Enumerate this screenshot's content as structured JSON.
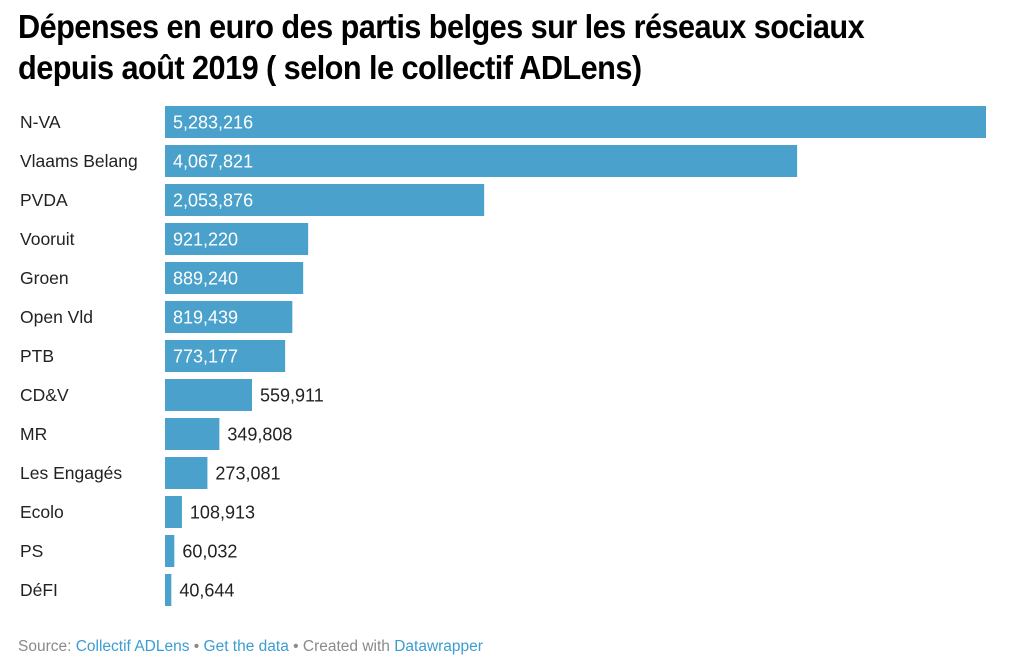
{
  "chart_data": {
    "type": "bar",
    "orientation": "horizontal",
    "title": "Dépenses en euro des partis belges sur les réseaux sociaux depuis août 2019 ( selon le collectif ADLens)",
    "xlabel": "",
    "ylabel": "",
    "grid": false,
    "bar_color": "#4aa1cc",
    "categories": [
      "N-VA",
      "Vlaams Belang",
      "PVDA",
      "Vooruit",
      "Groen",
      "Open Vld",
      "PTB",
      "CD&V",
      "MR",
      "Les Engagés",
      "Ecolo",
      "PS",
      "DéFI"
    ],
    "values": [
      5283216,
      4067821,
      2053876,
      921220,
      889240,
      819439,
      773177,
      559911,
      349808,
      273081,
      108913,
      60032,
      40644
    ],
    "value_labels": [
      "5,283,216",
      "4,067,821",
      "2,053,876",
      "921,220",
      "889,240",
      "819,439",
      "773,177",
      "559,911",
      "349,808",
      "273,081",
      "108,913",
      "60,032",
      "40,644"
    ],
    "xlim": [
      0,
      5283216
    ]
  },
  "footer": {
    "source_prefix": "Source: ",
    "source_link": "Collectif ADLens",
    "separator": " • ",
    "get_data": "Get the data",
    "created_with": "Created with ",
    "tool_link": "Datawrapper"
  }
}
